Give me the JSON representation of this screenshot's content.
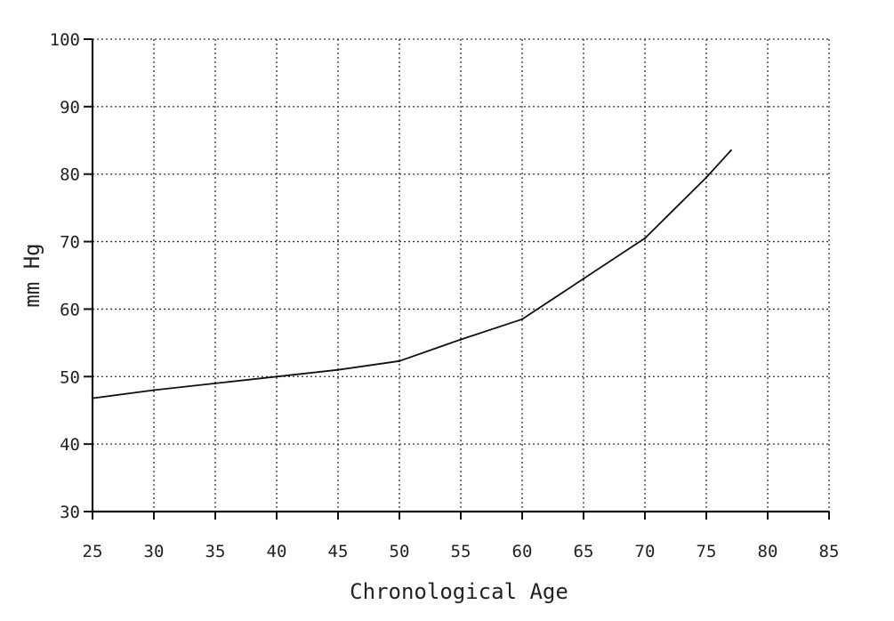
{
  "chart_data": {
    "type": "line",
    "title": "",
    "xlabel": "Chronological Age",
    "ylabel": "mm Hg",
    "xlim": [
      25,
      85
    ],
    "ylim": [
      30,
      100
    ],
    "x_ticks": [
      25,
      30,
      35,
      40,
      45,
      50,
      55,
      60,
      65,
      70,
      75,
      80,
      85
    ],
    "y_ticks": [
      30,
      40,
      50,
      60,
      70,
      80,
      90,
      100
    ],
    "x_tick_labels": [
      "25",
      "30",
      "35",
      "40",
      "45",
      "50",
      "55",
      "60",
      "65",
      "70",
      "75",
      "80",
      "85"
    ],
    "y_tick_labels": [
      "30",
      "40",
      "50",
      "60",
      "70",
      "80",
      "90",
      "100"
    ],
    "grid": true,
    "series": [
      {
        "x": [
          25,
          30,
          35,
          40,
          45,
          50,
          55,
          60,
          65,
          70,
          75,
          77
        ],
        "y": [
          46.8,
          48.0,
          49.0,
          50.0,
          51.0,
          52.3,
          55.5,
          58.5,
          64.5,
          70.5,
          79.5,
          83.5
        ]
      }
    ],
    "colors": {
      "line": "#111111",
      "grid": "#333333",
      "axis": "#111111",
      "text": "#222222",
      "background": "#ffffff"
    }
  }
}
